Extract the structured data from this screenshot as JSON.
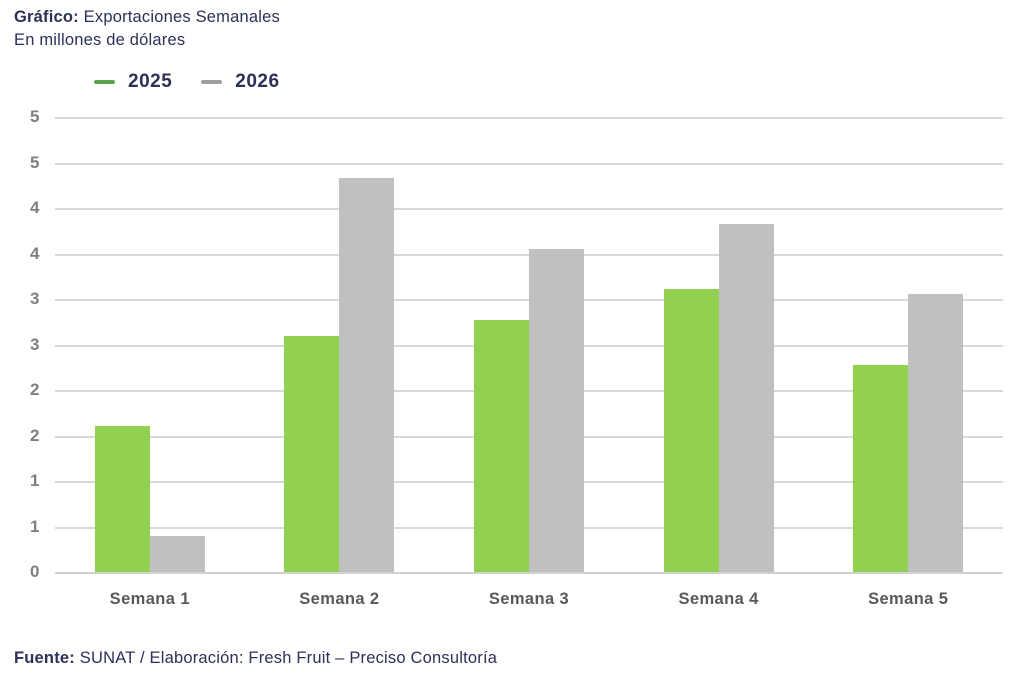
{
  "title": {
    "prefix": "Gráfico:",
    "text": " Exportaciones Semanales",
    "subtitle": "En millones de dólares"
  },
  "legend": {
    "items": [
      {
        "label": "2025",
        "swatch_color": "#5ba34a"
      },
      {
        "label": "2026",
        "swatch_color": "#9e9e9e"
      }
    ]
  },
  "footer": {
    "prefix": "Fuente:",
    "text": " SUNAT / Elaboración: Fresh Fruit – Preciso Consultoría"
  },
  "colors": {
    "title_text": "#2b3157",
    "series_2025": "#92d050",
    "series_2026": "#c0c0c0",
    "gridline": "#d9d9d9",
    "y_tick_text": "#7f7f7f",
    "x_tick_text": "#595959",
    "background": "#ffffff"
  },
  "chart_data": {
    "type": "bar",
    "title": "Gráfico: Exportaciones Semanales",
    "subtitle": "En millones de dólares",
    "categories": [
      "Semana 1",
      "Semana 2",
      "Semana 3",
      "Semana 4",
      "Semana 5"
    ],
    "series": [
      {
        "name": "2025",
        "color": "#92d050",
        "values": [
          1.6,
          2.59,
          2.77,
          3.11,
          2.28
        ]
      },
      {
        "name": "2026",
        "color": "#c0c0c0",
        "values": [
          0.4,
          4.33,
          3.55,
          3.82,
          3.05
        ]
      }
    ],
    "xlabel": "",
    "ylabel": "En millones de dólares",
    "ylim": [
      0,
      5
    ],
    "ytick_step": 0.5,
    "ytick_display_labels_bottom_up": [
      "0",
      "1",
      "1",
      "2",
      "2",
      "3",
      "3",
      "4",
      "4",
      "5",
      "5"
    ],
    "grid": true,
    "legend_position": "top-left",
    "source": "Fuente: SUNAT / Elaboración: Fresh Fruit – Preciso Consultoría"
  }
}
